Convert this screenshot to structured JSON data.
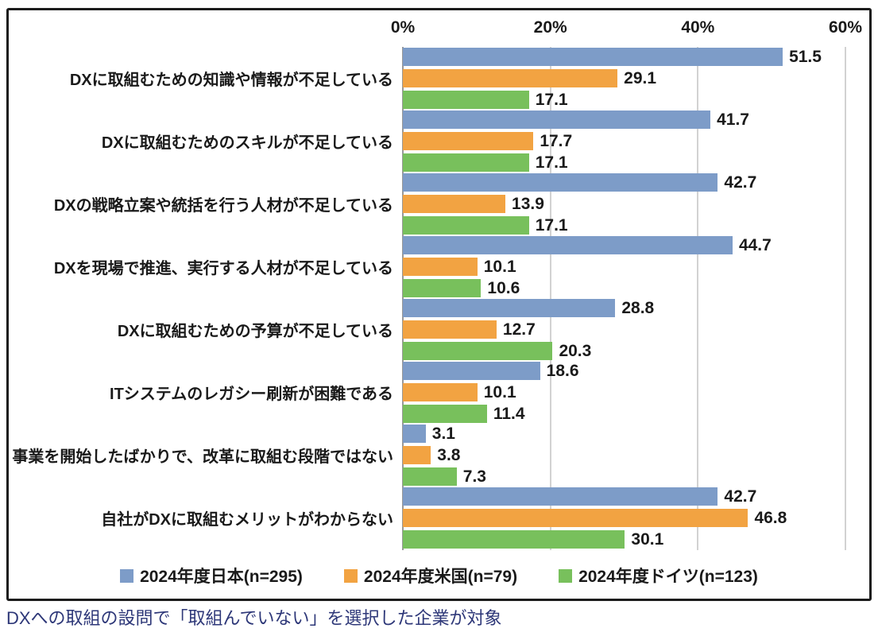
{
  "chart_data": {
    "type": "bar",
    "orientation": "horizontal",
    "title": "",
    "xlabel": "",
    "ylabel": "",
    "x_axis": {
      "position": "top",
      "min": 0,
      "max": 60,
      "tick_labels": [
        "0%",
        "20%",
        "40%",
        "60%"
      ],
      "tick_values": [
        0,
        20,
        40,
        60
      ],
      "grid": true
    },
    "legend_position": "bottom-center",
    "value_labels": true,
    "categories": [
      "DXに取組むための知識や情報が不足している",
      "DXに取組むためのスキルが不足している",
      "DXの戦略立案や統括を行う人材が不足している",
      "DXを現場で推進、実行する人材が不足している",
      "DXに取組むための予算が不足している",
      "ITシステムのレガシー刷新が困難である",
      "事業を開始したばかりで、改革に取組む段階ではない",
      "自社がDXに取組むメリットがわからない"
    ],
    "series": [
      {
        "name": "2024年度日本(n=295)",
        "color": "#7d9cc8",
        "values": [
          51.5,
          41.7,
          42.7,
          44.7,
          28.8,
          18.6,
          3.1,
          42.7
        ]
      },
      {
        "name": "2024年度米国(n=79)",
        "color": "#f2a342",
        "values": [
          29.1,
          17.7,
          13.9,
          10.1,
          12.7,
          10.1,
          3.8,
          46.8
        ]
      },
      {
        "name": "2024年度ドイツ(n=123)",
        "color": "#78c05c",
        "values": [
          17.1,
          17.1,
          17.1,
          10.6,
          20.3,
          11.4,
          7.3,
          30.1
        ]
      }
    ]
  },
  "footnote": {
    "text": "DXへの取組の設問で「取組んでいない」を選択した企業が対象",
    "color": "#2d3778"
  },
  "colors": {
    "grid": "#d2d2d2",
    "zero_axis": "#999999",
    "frame_border": "#1c1c1c",
    "text": "#1a1a1a"
  }
}
